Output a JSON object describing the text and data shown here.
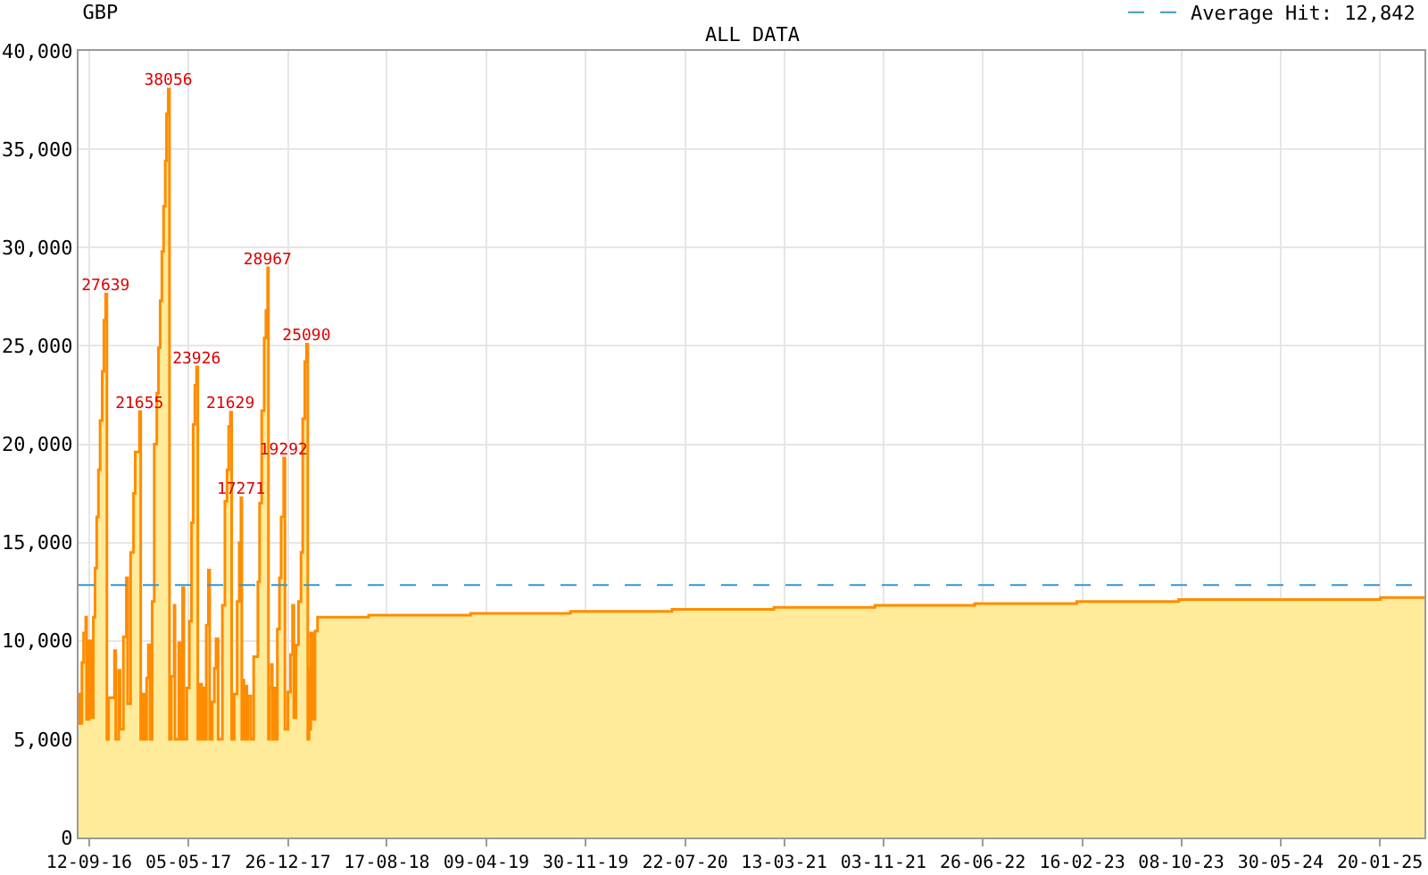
{
  "chart_data": {
    "type": "area",
    "title": "GBP",
    "subtitle": "ALL DATA",
    "x": [
      "2016-08-18",
      "2016-08-21",
      "2016-08-26",
      "2016-08-30",
      "2016-09-04",
      "2016-09-06",
      "2016-09-12",
      "2016-09-16",
      "2016-09-22",
      "2016-09-26",
      "2016-09-30",
      "2016-10-04",
      "2016-10-08",
      "2016-10-13",
      "2016-10-17",
      "2016-10-21",
      "2016-10-24",
      "2016-10-28",
      "2016-11-11",
      "2016-11-14",
      "2016-11-21",
      "2016-11-24",
      "2016-12-02",
      "2016-12-09",
      "2016-12-12",
      "2016-12-19",
      "2016-12-26",
      "2016-12-30",
      "2017-01-09",
      "2017-01-12",
      "2017-01-16",
      "2017-01-20",
      "2017-01-26",
      "2017-01-30",
      "2017-02-03",
      "2017-02-08",
      "2017-02-13",
      "2017-02-19",
      "2017-02-23",
      "2017-02-27",
      "2017-03-03",
      "2017-03-07",
      "2017-03-11",
      "2017-03-14",
      "2017-03-18",
      "2017-03-21",
      "2017-03-25",
      "2017-04-01",
      "2017-04-03",
      "2017-04-12",
      "2017-04-15",
      "2017-04-21",
      "2017-04-24",
      "2017-05-01",
      "2017-05-07",
      "2017-05-12",
      "2017-05-16",
      "2017-05-20",
      "2017-05-24",
      "2017-05-27",
      "2017-06-02",
      "2017-06-05",
      "2017-06-09",
      "2017-06-12",
      "2017-06-16",
      "2017-06-21",
      "2017-06-24",
      "2017-06-30",
      "2017-07-05",
      "2017-07-09",
      "2017-07-14",
      "2017-07-24",
      "2017-07-30",
      "2017-08-04",
      "2017-08-08",
      "2017-08-12",
      "2017-08-15",
      "2017-08-21",
      "2017-08-28",
      "2017-09-02",
      "2017-09-06",
      "2017-09-08",
      "2017-09-11",
      "2017-09-13",
      "2017-09-18",
      "2017-09-20",
      "2017-09-22",
      "2017-09-29",
      "2017-10-06",
      "2017-10-16",
      "2017-10-20",
      "2017-10-25",
      "2017-10-31",
      "2017-11-04",
      "2017-11-08",
      "2017-11-10",
      "2017-11-12",
      "2017-11-17",
      "2017-11-19",
      "2017-11-22",
      "2017-11-26",
      "2017-12-01",
      "2017-12-06",
      "2017-12-10",
      "2017-12-16",
      "2017-12-19",
      "2017-12-26",
      "2018-01-01",
      "2018-01-06",
      "2018-01-09",
      "2018-01-14",
      "2018-01-20",
      "2018-01-26",
      "2018-01-30",
      "2018-02-04",
      "2018-02-08",
      "2018-02-11",
      "2018-02-14",
      "2018-02-17",
      "2018-02-18",
      "2018-02-23",
      "2018-02-28",
      "2018-03-06",
      "2018-07-05",
      "2019-03-03",
      "2019-10-25",
      "2020-06-21",
      "2021-02-17",
      "2021-10-14",
      "2022-06-07",
      "2023-02-03",
      "2023-10-02",
      "2024-05-27",
      "2025-01-21",
      "2025-05-05"
    ],
    "values": [
      7300,
      5800,
      8900,
      10400,
      11200,
      6000,
      10000,
      6100,
      11200,
      13700,
      16300,
      18700,
      21200,
      23700,
      26300,
      27639,
      5000,
      7100,
      9500,
      5000,
      8500,
      5500,
      10200,
      13200,
      6800,
      14500,
      17500,
      19600,
      21655,
      5000,
      7300,
      5000,
      8100,
      9800,
      5000,
      12000,
      20000,
      22600,
      24900,
      27300,
      29800,
      32100,
      34400,
      36800,
      38056,
      5000,
      8200,
      11800,
      5000,
      9900,
      5000,
      12700,
      5000,
      7600,
      11000,
      16000,
      21000,
      23000,
      23926,
      5000,
      7800,
      5000,
      7600,
      5000,
      10800,
      13600,
      5000,
      6900,
      8600,
      10100,
      5000,
      11800,
      17100,
      18700,
      20900,
      21629,
      5000,
      7300,
      12000,
      15000,
      17271,
      5000,
      8000,
      5000,
      7700,
      5000,
      7200,
      5000,
      9200,
      13000,
      17000,
      21700,
      25400,
      26800,
      28967,
      5000,
      7600,
      8800,
      5000,
      7600,
      5000,
      10600,
      13200,
      16300,
      19292,
      5500,
      7400,
      9300,
      11800,
      6100,
      9800,
      12000,
      14500,
      21300,
      24200,
      25090,
      5000,
      8600,
      5500,
      10400,
      6000,
      10500,
      11200,
      11300,
      11400,
      11500,
      11600,
      11700,
      11800,
      11900,
      12000,
      12100,
      12100,
      12200,
      12200
    ],
    "value_labels": [
      null,
      null,
      null,
      null,
      null,
      null,
      null,
      null,
      null,
      null,
      null,
      null,
      null,
      null,
      null,
      "27639",
      null,
      null,
      null,
      null,
      null,
      null,
      null,
      null,
      null,
      null,
      null,
      null,
      "21655",
      null,
      null,
      null,
      null,
      null,
      null,
      null,
      null,
      null,
      null,
      null,
      null,
      null,
      null,
      null,
      "38056",
      null,
      null,
      null,
      null,
      null,
      null,
      null,
      null,
      null,
      null,
      null,
      null,
      null,
      "23926",
      null,
      null,
      null,
      null,
      null,
      null,
      null,
      null,
      null,
      null,
      null,
      null,
      null,
      null,
      null,
      null,
      "21629",
      null,
      null,
      null,
      null,
      "17271",
      null,
      null,
      null,
      null,
      null,
      null,
      null,
      null,
      null,
      null,
      null,
      null,
      null,
      "28967",
      null,
      null,
      null,
      null,
      null,
      null,
      null,
      null,
      null,
      "19292",
      null,
      null,
      null,
      null,
      null,
      null,
      null,
      null,
      null,
      null,
      "25090",
      null,
      null,
      null,
      null,
      null,
      null,
      null,
      null,
      null,
      null,
      null,
      null,
      null,
      null,
      null,
      null,
      null,
      null,
      null
    ],
    "color": "#ff8c00",
    "xlim": [
      "2016-08-18",
      "2025-05-05"
    ],
    "xticks": [
      {
        "value": "2016-09-12",
        "label": "12-09-16"
      },
      {
        "value": "2017-05-05",
        "label": "05-05-17"
      },
      {
        "value": "2017-12-26",
        "label": "26-12-17"
      },
      {
        "value": "2018-08-17",
        "label": "17-08-18"
      },
      {
        "value": "2019-04-09",
        "label": "09-04-19"
      },
      {
        "value": "2019-11-30",
        "label": "30-11-19"
      },
      {
        "value": "2020-07-22",
        "label": "22-07-20"
      },
      {
        "value": "2021-03-13",
        "label": "13-03-21"
      },
      {
        "value": "2021-11-03",
        "label": "03-11-21"
      },
      {
        "value": "2022-06-26",
        "label": "26-06-22"
      },
      {
        "value": "2023-02-16",
        "label": "16-02-23"
      },
      {
        "value": "2023-10-08",
        "label": "08-10-23"
      },
      {
        "value": "2024-05-30",
        "label": "30-05-24"
      },
      {
        "value": "2025-01-20",
        "label": "20-01-25"
      }
    ],
    "ylim": [
      0,
      40000
    ],
    "yticks": [
      0,
      {
        "value": 5000,
        "label": "5,000"
      },
      {
        "value": 10000,
        "label": "10,000"
      },
      {
        "value": 15000,
        "label": "15,000"
      },
      {
        "value": 20000,
        "label": "20,000"
      },
      {
        "value": 25000,
        "label": "25,000"
      },
      {
        "value": 30000,
        "label": "30,000"
      },
      {
        "value": 35000,
        "label": "35,000"
      },
      {
        "value": 40000,
        "label": "40,000"
      }
    ],
    "ref_lines": [
      {
        "axis": "y",
        "value": 12842,
        "label": "Average Hit: 12,842",
        "color": "#3399cc",
        "line_style": "dashed"
      }
    ],
    "grid": true,
    "legend": "top right"
  }
}
